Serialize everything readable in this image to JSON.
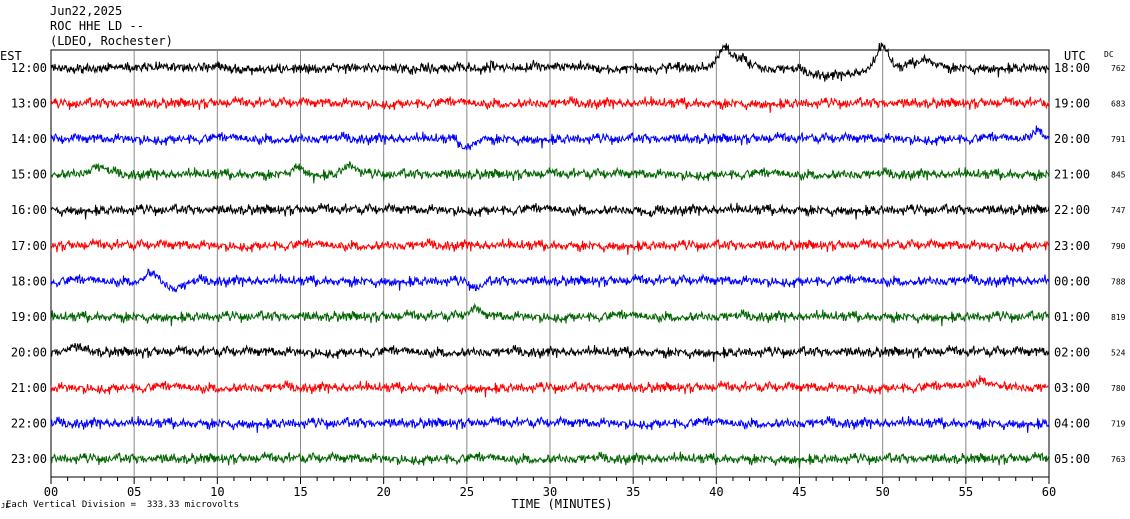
{
  "header": {
    "date": "Jun22,2025",
    "station": "ROC HHE LD --",
    "network": "(LDEO, Rochester)"
  },
  "footer": {
    "scale_note": "Each Vertical Division =  333.33 microvolts",
    "mark": "JL"
  },
  "chart_data": {
    "type": "line",
    "xlabel": "TIME (MINUTES)",
    "x_ticks": [
      "00",
      "05",
      "10",
      "15",
      "20",
      "25",
      "30",
      "35",
      "40",
      "45",
      "50",
      "55",
      "60"
    ],
    "xlim": [
      0,
      60
    ],
    "left_axis_label": "EST",
    "right_axis_label": "UTC",
    "dc_label": "DC",
    "grid": "vertical",
    "colors": [
      "#000000",
      "#ff0000",
      "#0000ff",
      "#006400"
    ],
    "traces": [
      {
        "est": "12:00",
        "utc": "18:00",
        "dc": "762",
        "color": "#000000"
      },
      {
        "est": "13:00",
        "utc": "19:00",
        "dc": "683",
        "color": "#ff0000"
      },
      {
        "est": "14:00",
        "utc": "20:00",
        "dc": "791",
        "color": "#0000ff"
      },
      {
        "est": "15:00",
        "utc": "21:00",
        "dc": "845",
        "color": "#006400"
      },
      {
        "est": "16:00",
        "utc": "22:00",
        "dc": "747",
        "color": "#000000"
      },
      {
        "est": "17:00",
        "utc": "23:00",
        "dc": "790",
        "color": "#ff0000"
      },
      {
        "est": "18:00",
        "utc": "00:00",
        "dc": "788",
        "color": "#0000ff"
      },
      {
        "est": "19:00",
        "utc": "01:00",
        "dc": "819",
        "color": "#006400"
      },
      {
        "est": "20:00",
        "utc": "02:00",
        "dc": "524",
        "color": "#000000"
      },
      {
        "est": "21:00",
        "utc": "03:00",
        "dc": "780",
        "color": "#ff0000"
      },
      {
        "est": "22:00",
        "utc": "04:00",
        "dc": "719",
        "color": "#0000ff"
      },
      {
        "est": "23:00",
        "utc": "05:00",
        "dc": "763",
        "color": "#006400"
      }
    ]
  }
}
